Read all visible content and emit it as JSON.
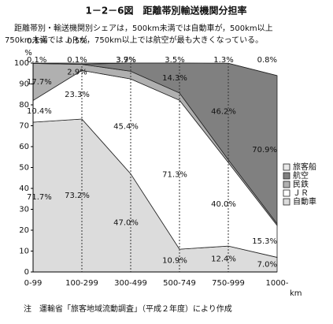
{
  "chart_data": {
    "type": "stacked-area",
    "title": "1－2－6図　距離帯別輸送機関分担率",
    "subtitle": [
      "距離帯別・輸送機関別シェアは，500km未満では自動車が，500km以上",
      "750km未満ではＪＲが，750km以上では航空が最も大きくなっている。"
    ],
    "y_label": "%",
    "x_label": "km",
    "note": "注　運輸省「旅客地域流動調査」（平成２年度）により作成",
    "categories": [
      "0-99",
      "100-299",
      "300-499",
      "500-749",
      "750-999",
      "1000-"
    ],
    "ylim": [
      0,
      100
    ],
    "yticks": [
      0,
      10,
      20,
      30,
      40,
      50,
      60,
      70,
      80,
      90,
      100
    ],
    "series": [
      {
        "name": "自動車",
        "color": "#dcdcdc",
        "values": [
          71.7,
          73.2,
          47.0,
          10.9,
          12.4,
          7.0
        ],
        "value_labels": [
          "71.7%",
          "73.2%",
          "47.0%",
          "10.9%",
          "12.4%",
          "7.0%"
        ]
      },
      {
        "name": "ＪＲ",
        "color": "#ffffff",
        "values": [
          10.4,
          23.3,
          45.4,
          71.3,
          40.0,
          15.3
        ],
        "value_labels": [
          "10.4%",
          "23.3%",
          "45.4%",
          "71.3%",
          "40.0%",
          "15.3%"
        ]
      },
      {
        "name": "民鉄",
        "color": "#b0b0b0",
        "values": [
          17.7,
          2.9,
          3.7,
          3.5,
          1.3,
          0.8
        ],
        "value_labels": [
          "17.7%",
          "2.9%",
          "3.7%",
          "3.5%",
          "1.3%",
          "0.8%"
        ]
      },
      {
        "name": "航空",
        "color": "#808080",
        "values": [
          0.1,
          0.1,
          3.9,
          14.3,
          46.2,
          70.9
        ],
        "value_labels": [
          "0.1%",
          "0.1%",
          "3.9%",
          "14.3%",
          "46.2%",
          "70.9%"
        ]
      },
      {
        "name": "旅客船",
        "color": "#e8e8e8",
        "values": [
          0.1,
          0.5,
          0,
          0,
          0,
          0
        ],
        "value_labels": [
          "0.1%",
          "0.5%",
          null,
          null,
          null,
          null
        ]
      }
    ]
  }
}
